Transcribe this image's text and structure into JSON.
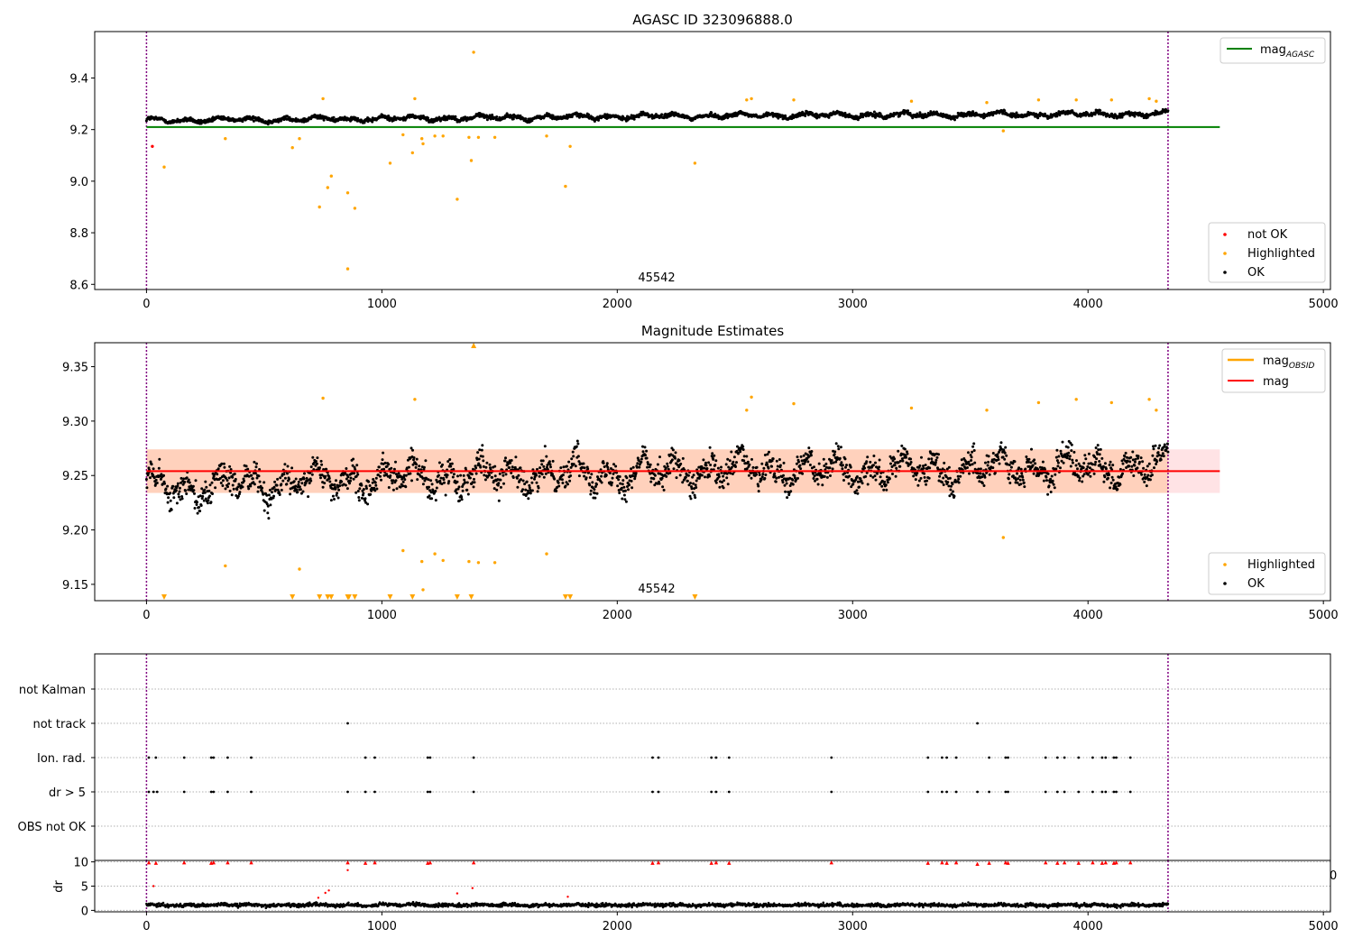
{
  "chart_data": [
    {
      "id": "p1",
      "type": "scatter",
      "title": "AGASC ID 323096888.0",
      "xlim": [
        -220,
        5030
      ],
      "ylim": [
        8.58,
        9.58
      ],
      "xticks": [
        0,
        1000,
        2000,
        3000,
        4000,
        5000
      ],
      "yticks": [
        8.6,
        8.8,
        9.0,
        9.2,
        9.4
      ],
      "ytick_labels": [
        "8.6",
        "8.8",
        "9.0",
        "9.2",
        "9.4"
      ],
      "vlines": [
        0,
        4340
      ],
      "annotation": {
        "x": 2170,
        "y": 8.605,
        "text": "45542"
      },
      "hlines": [
        {
          "name": "magAGASC",
          "y": 9.21,
          "x0": 0,
          "x1": 4560,
          "color": "#008000"
        }
      ],
      "series": [
        {
          "name": "not OK",
          "color": "#ff0000",
          "points": [
            [
              25,
              9.135
            ]
          ]
        },
        {
          "name": "Highlighted",
          "color": "#ffa500",
          "points": [
            [
              75,
              9.055
            ],
            [
              335,
              9.165
            ],
            [
              620,
              9.13
            ],
            [
              650,
              9.165
            ],
            [
              735,
              8.9
            ],
            [
              750,
              9.32
            ],
            [
              770,
              8.975
            ],
            [
              785,
              9.02
            ],
            [
              855,
              8.955
            ],
            [
              855,
              8.66
            ],
            [
              885,
              8.895
            ],
            [
              1035,
              9.07
            ],
            [
              1090,
              9.18
            ],
            [
              1130,
              9.11
            ],
            [
              1140,
              9.32
            ],
            [
              1170,
              9.165
            ],
            [
              1175,
              9.145
            ],
            [
              1225,
              9.175
            ],
            [
              1260,
              9.175
            ],
            [
              1320,
              8.93
            ],
            [
              1370,
              9.17
            ],
            [
              1380,
              9.08
            ],
            [
              1390,
              9.5
            ],
            [
              1410,
              9.17
            ],
            [
              1480,
              9.17
            ],
            [
              1700,
              9.175
            ],
            [
              1780,
              8.98
            ],
            [
              1800,
              9.135
            ],
            [
              2330,
              9.07
            ],
            [
              2550,
              9.315
            ],
            [
              2570,
              9.32
            ],
            [
              2750,
              9.315
            ],
            [
              3250,
              9.31
            ],
            [
              3570,
              9.305
            ],
            [
              3640,
              9.195
            ],
            [
              3790,
              9.315
            ],
            [
              3950,
              9.315
            ],
            [
              4100,
              9.315
            ],
            [
              4260,
              9.32
            ],
            [
              4290,
              9.31
            ]
          ]
        },
        {
          "name": "OK",
          "color": "#000000",
          "generated": {
            "base": [
              [
                0,
                9.235
              ],
              [
                1300,
                9.245
              ],
              [
                2600,
                9.255
              ],
              [
                4340,
                9.26
              ]
            ],
            "noise": 0.008,
            "wave": 0.02,
            "count": 2200
          }
        }
      ],
      "legend_lines": {
        "position": "top-right",
        "entries": [
          "mag_AGASC"
        ]
      },
      "legend_points": {
        "position": "bottom-right",
        "entries": [
          "not OK",
          "Highlighted",
          "OK"
        ]
      }
    },
    {
      "id": "p2",
      "type": "scatter",
      "title": "Magnitude Estimates",
      "xlim": [
        -220,
        5030
      ],
      "ylim": [
        9.135,
        9.372
      ],
      "xticks": [
        0,
        1000,
        2000,
        3000,
        4000,
        5000
      ],
      "yticks": [
        9.15,
        9.2,
        9.25,
        9.3,
        9.35
      ],
      "ytick_labels": [
        "9.15",
        "9.20",
        "9.25",
        "9.30",
        "9.35"
      ],
      "vlines": [
        0,
        4340
      ],
      "annotation": {
        "x": 2170,
        "y": 9.142,
        "text": "45542"
      },
      "band": {
        "y0": 9.234,
        "y1": 9.274,
        "x0": 0,
        "x1": 4560
      },
      "hlines": [
        {
          "name": "mag",
          "y": 9.254,
          "x0": 0,
          "x1": 4560,
          "color": "#ff0000"
        }
      ],
      "series": [
        {
          "name": "Highlighted",
          "color": "#ffa500",
          "points": [
            [
              335,
              9.167
            ],
            [
              650,
              9.164
            ],
            [
              750,
              9.321
            ],
            [
              1090,
              9.181
            ],
            [
              1140,
              9.32
            ],
            [
              1170,
              9.171
            ],
            [
              1175,
              9.145
            ],
            [
              1225,
              9.178
            ],
            [
              1260,
              9.172
            ],
            [
              1370,
              9.171
            ],
            [
              1410,
              9.17
            ],
            [
              1480,
              9.17
            ],
            [
              1700,
              9.178
            ],
            [
              2550,
              9.31
            ],
            [
              2570,
              9.322
            ],
            [
              2750,
              9.316
            ],
            [
              3250,
              9.312
            ],
            [
              3570,
              9.31
            ],
            [
              3640,
              9.193
            ],
            [
              3790,
              9.317
            ],
            [
              3950,
              9.32
            ],
            [
              4100,
              9.317
            ],
            [
              4260,
              9.32
            ],
            [
              4290,
              9.31
            ]
          ]
        },
        {
          "name": "OK",
          "color": "#000000",
          "generated": {
            "base": [
              [
                0,
                9.238
              ],
              [
                1300,
                9.25
              ],
              [
                2600,
                9.255
              ],
              [
                4340,
                9.258
              ]
            ],
            "noise": 0.012,
            "wave": 0.03,
            "count": 2200
          }
        },
        {
          "name": "clipped_low",
          "color": "#ffa500",
          "marker": "triangle-down",
          "xs": [
            75,
            620,
            735,
            770,
            785,
            855,
            860,
            885,
            1035,
            1130,
            1320,
            1380,
            1780,
            1800,
            2330
          ]
        },
        {
          "name": "clipped_high",
          "color": "#ffa500",
          "marker": "triangle-up",
          "xs": [
            1390
          ]
        }
      ],
      "legend_lines": {
        "position": "top-right",
        "entries": [
          "mag_OBSID",
          "mag"
        ]
      },
      "legend_points": {
        "position": "bottom-right",
        "entries": [
          "Highlighted",
          "OK"
        ]
      }
    },
    {
      "id": "p3",
      "type": "scatter",
      "title": "",
      "xlim": [
        -220,
        5030
      ],
      "categories": [
        "not Kalman",
        "not track",
        "Ion. rad.",
        "dr > 5",
        "OBS not OK"
      ],
      "vlines": [
        0,
        4340
      ],
      "flag_points": {
        "not track": [
          855,
          3530
        ],
        "Ion. rad.": [
          10,
          40,
          160,
          275,
          285,
          345,
          445,
          930,
          970,
          1195,
          1205,
          1390,
          2150,
          2175,
          2400,
          2420,
          2475,
          2910,
          3320,
          3380,
          3400,
          3440,
          3580,
          3650,
          3660,
          3820,
          3870,
          3900,
          3960,
          4020,
          4060,
          4075,
          4110,
          4120,
          4180
        ],
        "dr > 5": [
          10,
          30,
          45,
          160,
          275,
          285,
          345,
          445,
          855,
          930,
          970,
          1195,
          1205,
          1390,
          2150,
          2175,
          2400,
          2420,
          2475,
          2910,
          3320,
          3380,
          3400,
          3440,
          3530,
          3580,
          3650,
          3660,
          3820,
          3870,
          3900,
          3960,
          4020,
          4060,
          4075,
          4110,
          4120,
          4180
        ]
      }
    },
    {
      "id": "p4",
      "type": "scatter",
      "ylabel": "dr",
      "xlim": [
        -220,
        5030
      ],
      "ylim": [
        -0.3,
        10.3
      ],
      "xticks": [
        0,
        1000,
        2000,
        3000,
        4000,
        5000
      ],
      "yticks": [
        0,
        5,
        10
      ],
      "vlines": [
        0,
        4340
      ],
      "series": [
        {
          "name": "dr_ok",
          "color": "#000000",
          "generated": {
            "base": [
              [
                0,
                1.1
              ],
              [
                4340,
                1.1
              ]
            ],
            "noise": 0.35,
            "wave": 0.3,
            "count": 2200
          }
        },
        {
          "name": "dr_high",
          "color": "#ff0000",
          "marker": "triangle-up",
          "points": [
            [
              10,
              9.9
            ],
            [
              40,
              9.8
            ],
            [
              160,
              9.9
            ],
            [
              275,
              9.8
            ],
            [
              285,
              9.9
            ],
            [
              345,
              9.9
            ],
            [
              445,
              9.9
            ],
            [
              855,
              9.9
            ],
            [
              930,
              9.8
            ],
            [
              970,
              9.9
            ],
            [
              1195,
              9.8
            ],
            [
              1205,
              9.9
            ],
            [
              1390,
              9.9
            ],
            [
              2150,
              9.8
            ],
            [
              2175,
              9.9
            ],
            [
              2400,
              9.8
            ],
            [
              2420,
              9.9
            ],
            [
              2475,
              9.8
            ],
            [
              2910,
              9.9
            ],
            [
              3320,
              9.8
            ],
            [
              3380,
              9.9
            ],
            [
              3400,
              9.8
            ],
            [
              3440,
              9.9
            ],
            [
              3530,
              9.6
            ],
            [
              3580,
              9.8
            ],
            [
              3650,
              9.9
            ],
            [
              3660,
              9.8
            ],
            [
              3820,
              9.9
            ],
            [
              3870,
              9.8
            ],
            [
              3900,
              9.9
            ],
            [
              3960,
              9.8
            ],
            [
              4020,
              9.9
            ],
            [
              4060,
              9.8
            ],
            [
              4075,
              9.9
            ],
            [
              4110,
              9.8
            ],
            [
              4120,
              9.9
            ],
            [
              4180,
              9.9
            ]
          ]
        },
        {
          "name": "dr_mid",
          "color": "#ff0000",
          "points": [
            [
              30,
              5.0
            ],
            [
              730,
              2.6
            ],
            [
              760,
              3.6
            ],
            [
              775,
              4.1
            ],
            [
              855,
              8.3
            ],
            [
              1320,
              3.5
            ],
            [
              1385,
              4.6
            ],
            [
              1790,
              2.8
            ]
          ]
        }
      ]
    }
  ]
}
